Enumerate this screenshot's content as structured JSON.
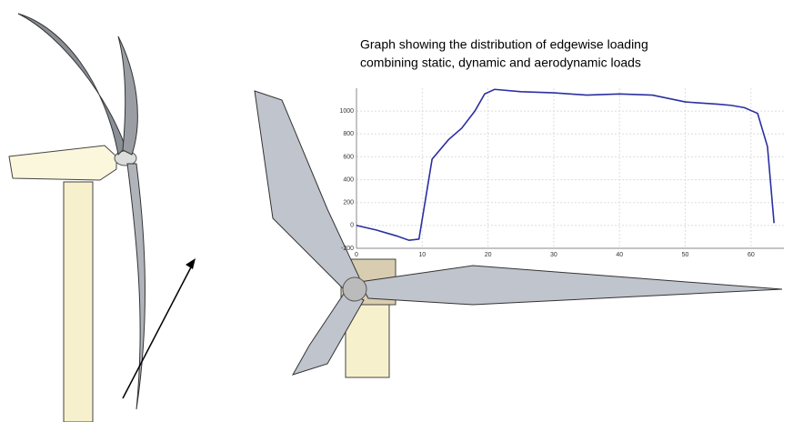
{
  "chart_data": {
    "type": "line",
    "title": [
      "Graph showing the distribution of edgewise loading",
      "combining static, dynamic and aerodynamic loads"
    ],
    "x": [
      0,
      3,
      6,
      8,
      9.5,
      11.5,
      14,
      16,
      18,
      19.5,
      21,
      25,
      30,
      35,
      40,
      45,
      50,
      55,
      57,
      59,
      61,
      62.5,
      63.5
    ],
    "series": [
      {
        "color": "#2b2fa0",
        "values": [
          0,
          -40,
          -90,
          -130,
          -120,
          580,
          750,
          850,
          1000,
          1150,
          1190,
          1170,
          1160,
          1140,
          1150,
          1140,
          1080,
          1060,
          1050,
          1030,
          980,
          690,
          20
        ]
      }
    ],
    "xlim": [
      0,
      65
    ],
    "xticks": [
      0,
      10,
      20,
      30,
      40,
      50,
      60
    ],
    "ylim": [
      -200,
      1200
    ],
    "yticks": [
      -200,
      0,
      200,
      400,
      600,
      800,
      1000
    ],
    "grid": true
  }
}
